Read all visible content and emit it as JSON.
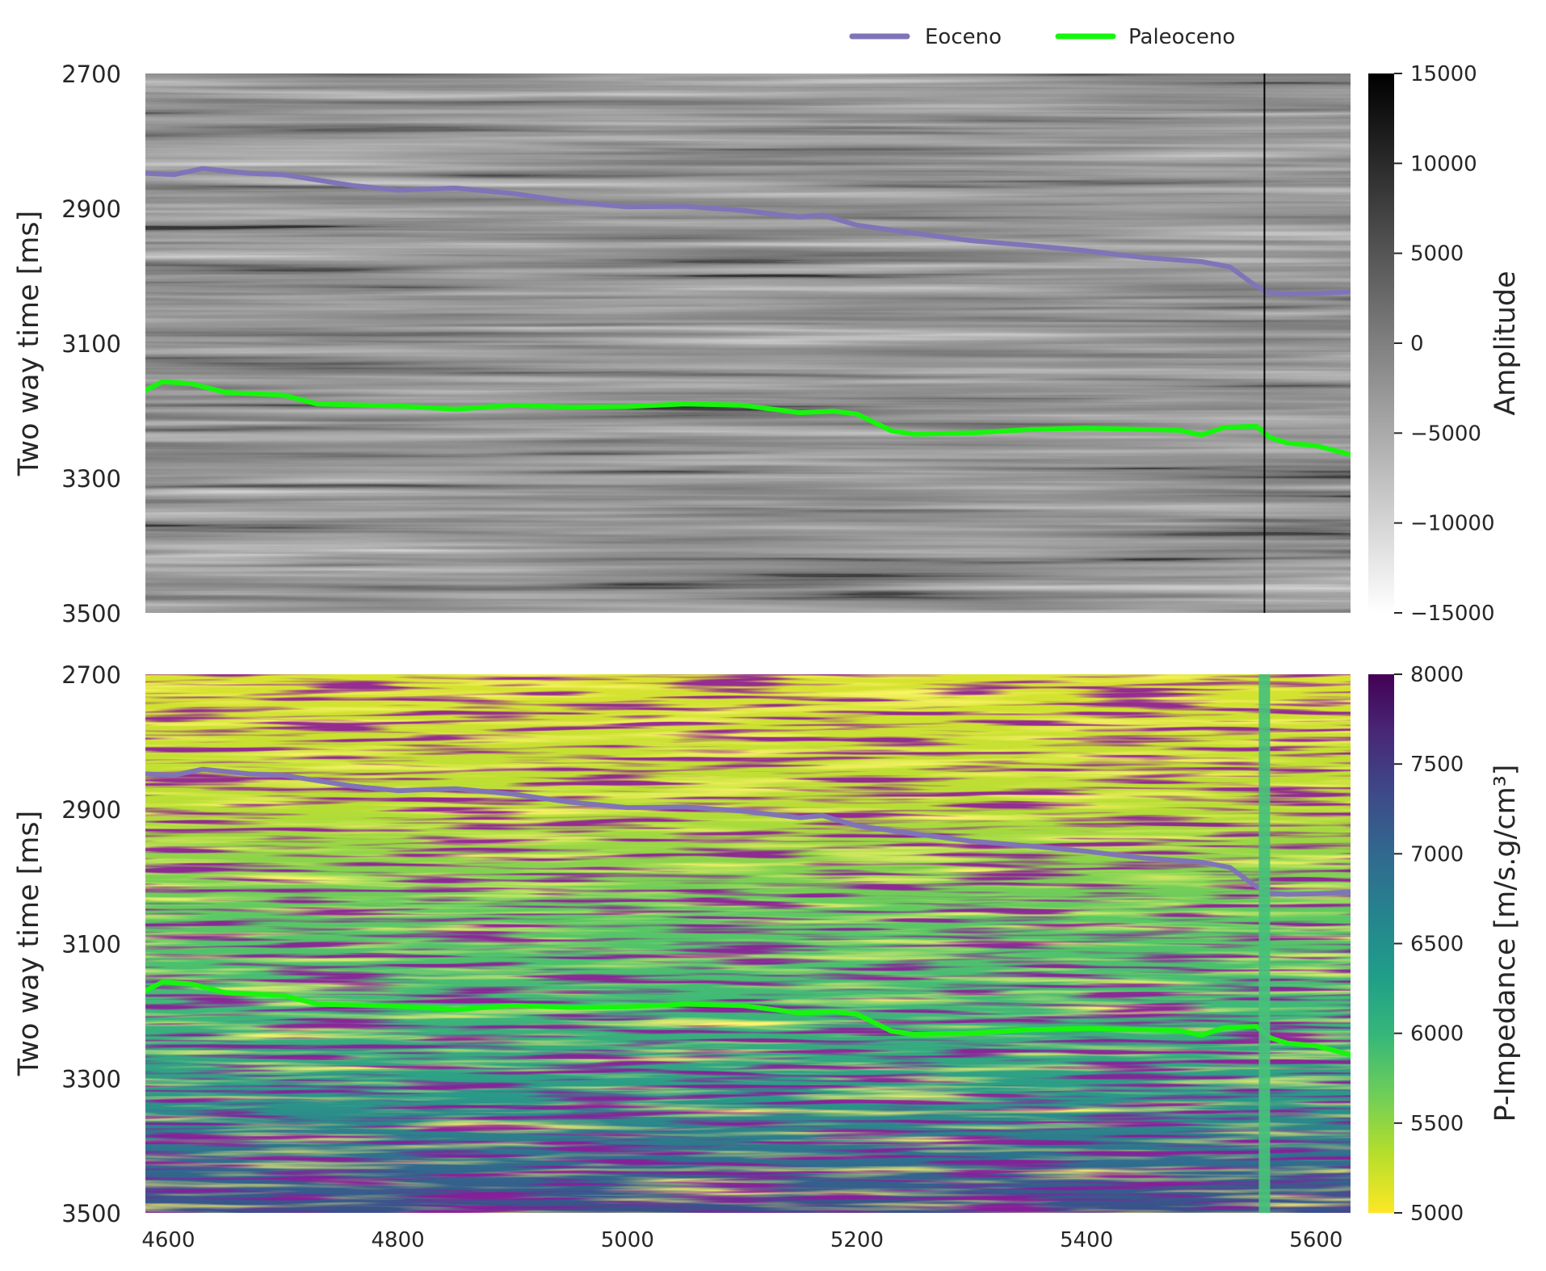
{
  "legend": {
    "items": [
      {
        "label": "Eoceno",
        "color": "#8074B8"
      },
      {
        "label": "Paleoceno",
        "color": "#16F60C"
      }
    ]
  },
  "chart_data": [
    {
      "type": "heatmap",
      "panel": "seismic-amplitude",
      "ylabel": "Two way time [ms]",
      "ylim": [
        3500,
        2700
      ],
      "yticks": [
        2700,
        2900,
        3100,
        3300,
        3500
      ],
      "xlim": [
        4580,
        5630
      ],
      "colorbar": {
        "label": "Amplitude",
        "range": [
          -15000,
          15000
        ],
        "ticks": [
          15000,
          10000,
          5000,
          0,
          -5000,
          -10000,
          -15000
        ],
        "tick_labels": [
          "15000",
          "10000",
          "5000",
          "0",
          "−5000",
          "−10000",
          "−15000"
        ],
        "colors": [
          "#ffffff",
          "#000000"
        ]
      },
      "well_line_x": 5555,
      "series": [
        {
          "name": "Eoceno",
          "color": "#8074B8",
          "x": [
            4580,
            4605,
            4630,
            4670,
            4700,
            4760,
            4800,
            4850,
            4900,
            4950,
            5000,
            5050,
            5100,
            5150,
            5170,
            5200,
            5250,
            5300,
            5350,
            5400,
            5450,
            5500,
            5525,
            5545,
            5558,
            5575,
            5600,
            5630
          ],
          "y": [
            2848,
            2850,
            2841,
            2848,
            2850,
            2866,
            2873,
            2870,
            2878,
            2890,
            2898,
            2897,
            2903,
            2913,
            2910,
            2925,
            2937,
            2948,
            2955,
            2963,
            2973,
            2979,
            2987,
            3012,
            3025,
            3027,
            3026,
            3024
          ]
        },
        {
          "name": "Paleoceno",
          "color": "#16F60C",
          "x": [
            4580,
            4595,
            4620,
            4650,
            4700,
            4730,
            4800,
            4850,
            4900,
            4950,
            5000,
            5050,
            5100,
            5150,
            5180,
            5200,
            5230,
            5250,
            5300,
            5350,
            5400,
            5450,
            5480,
            5500,
            5520,
            5548,
            5560,
            5575,
            5600,
            5630
          ],
          "y": [
            3170,
            3157,
            3160,
            3173,
            3177,
            3190,
            3193,
            3198,
            3192,
            3195,
            3194,
            3190,
            3192,
            3203,
            3201,
            3205,
            3230,
            3235,
            3233,
            3228,
            3226,
            3228,
            3229,
            3236,
            3225,
            3223,
            3240,
            3248,
            3252,
            3265
          ]
        }
      ]
    },
    {
      "type": "heatmap",
      "panel": "p-impedance",
      "ylabel": "Two way time [ms]",
      "ylim": [
        3500,
        2700
      ],
      "yticks": [
        2700,
        2900,
        3100,
        3300,
        3500
      ],
      "xlim": [
        4580,
        5630
      ],
      "xticks": [
        4600,
        4800,
        5000,
        5200,
        5400,
        5600
      ],
      "colorbar": {
        "label": "P-Impedance [m/s.g/cm³]",
        "range": [
          5000,
          8000
        ],
        "ticks": [
          8000,
          7500,
          7000,
          6500,
          6000,
          5500,
          5000
        ],
        "tick_labels": [
          "8000",
          "7500",
          "7000",
          "6500",
          "6000",
          "5500",
          "5000"
        ],
        "colors": [
          "#FDE725",
          "#B5DE2B",
          "#6ECE58",
          "#35B779",
          "#1F9E89",
          "#26828E",
          "#31688E",
          "#3E4989",
          "#482878",
          "#440154"
        ]
      },
      "well_line_x": 5555,
      "series": [
        {
          "name": "Eoceno",
          "color": "#8074B8",
          "x": [
            4580,
            4605,
            4630,
            4670,
            4700,
            4760,
            4800,
            4850,
            4900,
            4950,
            5000,
            5050,
            5100,
            5150,
            5170,
            5200,
            5250,
            5300,
            5350,
            5400,
            5450,
            5500,
            5525,
            5545,
            5558,
            5575,
            5600,
            5630
          ],
          "y": [
            2848,
            2850,
            2841,
            2848,
            2850,
            2866,
            2873,
            2870,
            2878,
            2890,
            2898,
            2897,
            2903,
            2913,
            2910,
            2925,
            2937,
            2948,
            2955,
            2963,
            2973,
            2979,
            2987,
            3012,
            3025,
            3027,
            3026,
            3024
          ]
        },
        {
          "name": "Paleoceno",
          "color": "#16F60C",
          "x": [
            4580,
            4595,
            4620,
            4650,
            4700,
            4730,
            4800,
            4850,
            4900,
            4950,
            5000,
            5050,
            5100,
            5150,
            5180,
            5200,
            5230,
            5250,
            5300,
            5350,
            5400,
            5450,
            5480,
            5500,
            5520,
            5548,
            5560,
            5575,
            5600,
            5630
          ],
          "y": [
            3170,
            3157,
            3160,
            3173,
            3177,
            3190,
            3193,
            3198,
            3192,
            3195,
            3194,
            3190,
            3192,
            3203,
            3201,
            3205,
            3230,
            3235,
            3233,
            3228,
            3226,
            3228,
            3229,
            3236,
            3225,
            3223,
            3240,
            3248,
            3252,
            3265
          ]
        }
      ]
    }
  ]
}
